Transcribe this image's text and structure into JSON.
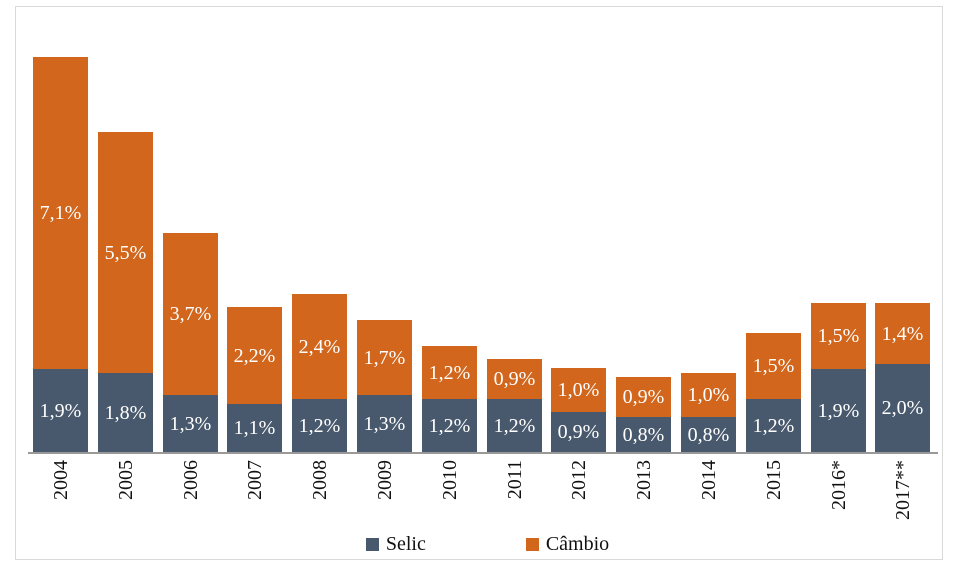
{
  "chart_data": {
    "type": "bar",
    "stacked": true,
    "title": "",
    "xlabel": "",
    "ylabel": "",
    "grid": false,
    "legend_position": "bottom",
    "ylim": [
      0,
      9.6
    ],
    "categories": [
      "2004",
      "2005",
      "2006",
      "2007",
      "2008",
      "2009",
      "2010",
      "2011",
      "2012",
      "2013",
      "2014",
      "2015",
      "2016*",
      "2017**"
    ],
    "series": [
      {
        "name": "Selic",
        "color": "#48596D",
        "values": [
          1.9,
          1.8,
          1.3,
          1.1,
          1.2,
          1.3,
          1.2,
          1.2,
          0.9,
          0.8,
          0.8,
          1.2,
          1.9,
          2.0
        ],
        "labels": [
          "1,9%",
          "1,8%",
          "1,3%",
          "1,1%",
          "1,2%",
          "1,3%",
          "1,2%",
          "1,2%",
          "0,9%",
          "0,8%",
          "0,8%",
          "1,2%",
          "1,9%",
          "2,0%"
        ]
      },
      {
        "name": "Câmbio",
        "color": "#D2661C",
        "values": [
          7.1,
          5.5,
          3.7,
          2.2,
          2.4,
          1.7,
          1.2,
          0.9,
          1.0,
          0.9,
          1.0,
          1.5,
          1.5,
          1.4
        ],
        "labels": [
          "7,1%",
          "5,5%",
          "3,7%",
          "2,2%",
          "2,4%",
          "1,7%",
          "1,2%",
          "0,9%",
          "1,0%",
          "0,9%",
          "1,0%",
          "1,5%",
          "1,5%",
          "1,4%"
        ]
      }
    ],
    "value_label_color": "#FFFFFF",
    "axis_line_color": "#999999",
    "frame_border_color": "#D9D9D9"
  }
}
